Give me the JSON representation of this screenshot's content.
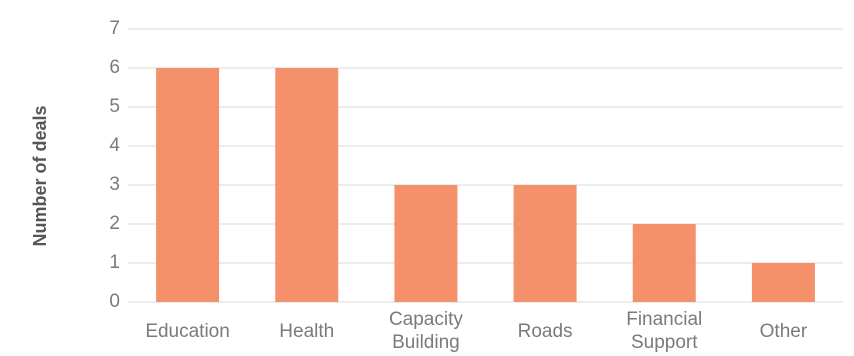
{
  "chart_data": {
    "type": "bar",
    "categories": [
      "Education",
      "Health",
      "Capacity Building",
      "Roads",
      "Financial Support",
      "Other"
    ],
    "category_lines": [
      [
        "Education"
      ],
      [
        "Health"
      ],
      [
        "Capacity",
        "Building"
      ],
      [
        "Roads"
      ],
      [
        "Financial",
        "Support"
      ],
      [
        "Other"
      ]
    ],
    "values": [
      6,
      6,
      3,
      3,
      2,
      1
    ],
    "ylabel": "Number of deals",
    "ylim": [
      0,
      7
    ],
    "yticks": [
      0,
      1,
      2,
      3,
      4,
      5,
      6,
      7
    ],
    "grid": true,
    "bar_color": "#f4916a"
  }
}
